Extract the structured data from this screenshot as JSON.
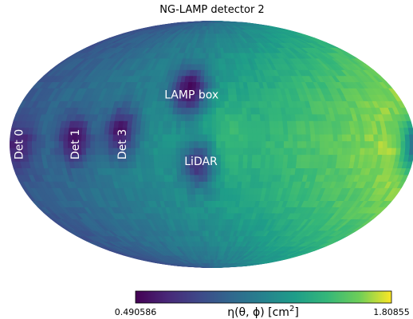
{
  "chart_data": {
    "type": "heatmap",
    "projection": "mollweide",
    "title": "NG-LAMP detector 2",
    "colormap": "viridis",
    "colorbar": {
      "min": 0.490586,
      "max": 1.80855,
      "min_label": "0.490586",
      "max_label": "1.80855",
      "label_math": "η(θ, ϕ) [cm",
      "label_sup": "2",
      "label_close": "]"
    },
    "annotations": [
      {
        "text": "LAMP box",
        "rotation": 0,
        "lon": -20,
        "lat": 30
      },
      {
        "text": "LiDAR",
        "rotation": 0,
        "lon": -10,
        "lat": -10
      },
      {
        "text": "Det 0",
        "rotation": -90,
        "lon": -172,
        "lat": 0
      },
      {
        "text": "Det 1",
        "rotation": -90,
        "lon": -122,
        "lat": 0
      },
      {
        "text": "Det 3",
        "rotation": -90,
        "lon": -80,
        "lat": 0
      }
    ],
    "features": [
      {
        "name": "LAMP box",
        "lon": -22,
        "lat": 33,
        "value": 0.5
      },
      {
        "name": "LiDAR",
        "lon": -12,
        "lat": -12,
        "value": 0.72
      },
      {
        "name": "Det 0",
        "lon": -172,
        "lat": 0,
        "value": 0.62
      },
      {
        "name": "Det 1",
        "lon": -122,
        "lat": 3,
        "value": 0.55
      },
      {
        "name": "Det 3",
        "lon": -82,
        "lat": 8,
        "value": 0.58
      }
    ]
  }
}
